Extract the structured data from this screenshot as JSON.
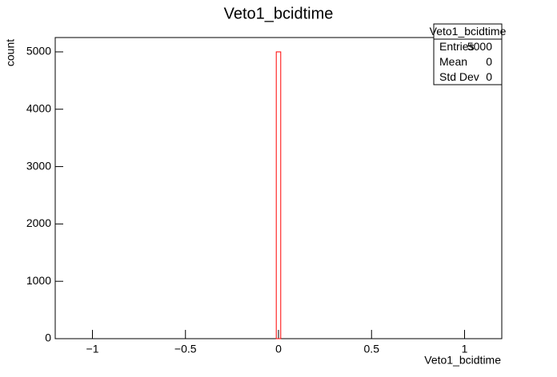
{
  "chart_data": {
    "type": "histogram",
    "title": "Veto1_bcidtime",
    "x_label": "Veto1_bcidtime",
    "y_label": "count",
    "bins": [
      -1.2,
      -0.012,
      0.012,
      1.2
    ],
    "counts": [
      0,
      5000,
      0
    ],
    "color": "#ff0000",
    "xlim": [
      -1.2,
      1.2
    ],
    "xticks": [
      {
        "value": -1,
        "label": "−1"
      },
      {
        "value": -0.5,
        "label": "−0.5"
      },
      0,
      0.5,
      1
    ],
    "ylim": [
      0,
      5250
    ],
    "yticks": [
      0,
      1000,
      2000,
      3000,
      4000,
      5000
    ],
    "stats": {
      "title": "Veto1_bcidtime",
      "rows": [
        [
          "Entries",
          5000
        ],
        [
          "Mean",
          0
        ],
        [
          "Std Dev",
          0
        ]
      ]
    }
  }
}
